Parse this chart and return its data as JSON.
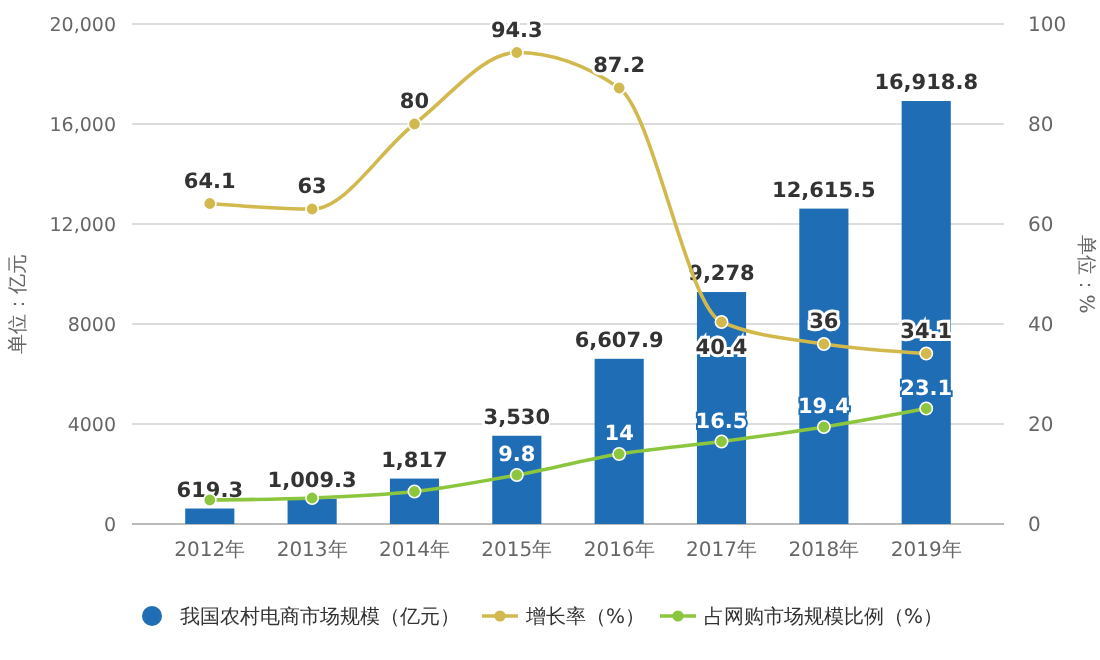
{
  "chart_data": {
    "type": "bar",
    "categories": [
      "2012年",
      "2013年",
      "2014年",
      "2015年",
      "2016年",
      "2017年",
      "2018年",
      "2019年"
    ],
    "ylabel": "单位：亿元",
    "y2label": "单位：%",
    "ylim": [
      0,
      20000
    ],
    "yticks": [
      0,
      4000,
      8000,
      {
        "value": 12000,
        "label": "12,000"
      },
      {
        "value": 16000,
        "label": "16,000"
      },
      {
        "value": 20000,
        "label": "20,000"
      }
    ],
    "y2lim": [
      0,
      100
    ],
    "y2ticks": [
      0,
      20,
      40,
      60,
      80,
      100
    ],
    "grid": "y",
    "legend": "bottom",
    "marker": "circle",
    "series": [
      {
        "name": "我国农村电商市场规模（亿元）",
        "color": "#1f6db5",
        "values": [
          619.3,
          1009.3,
          1817,
          3530,
          6607.9,
          9278,
          12615.5,
          16918.8
        ],
        "value_labels": [
          "619.3",
          "1,009.3",
          "1,817",
          "3,530",
          "6,607.9",
          "9,278",
          "12,615.5",
          "16,918.8"
        ]
      },
      {
        "name": "增长率（%）",
        "type": "line",
        "axis": "y2",
        "color": "#d2b94e",
        "values": [
          64.1,
          63,
          80,
          94.3,
          87.2,
          40.4,
          36,
          34.1
        ],
        "value_labels": [
          "64.1",
          "63",
          "80",
          "94.3",
          "87.2",
          "40.4",
          "36",
          "34.1"
        ]
      },
      {
        "name": "占网购市场规模比例（%）",
        "type": "line",
        "axis": "y2",
        "color": "#8cc63f",
        "values": [
          4.8,
          5.2,
          6.5,
          9.8,
          14,
          16.5,
          19.4,
          23.1
        ],
        "value_labels": [
          null,
          null,
          null,
          "9.8",
          "14",
          "16.5",
          "19.4",
          "23.1"
        ]
      }
    ]
  }
}
